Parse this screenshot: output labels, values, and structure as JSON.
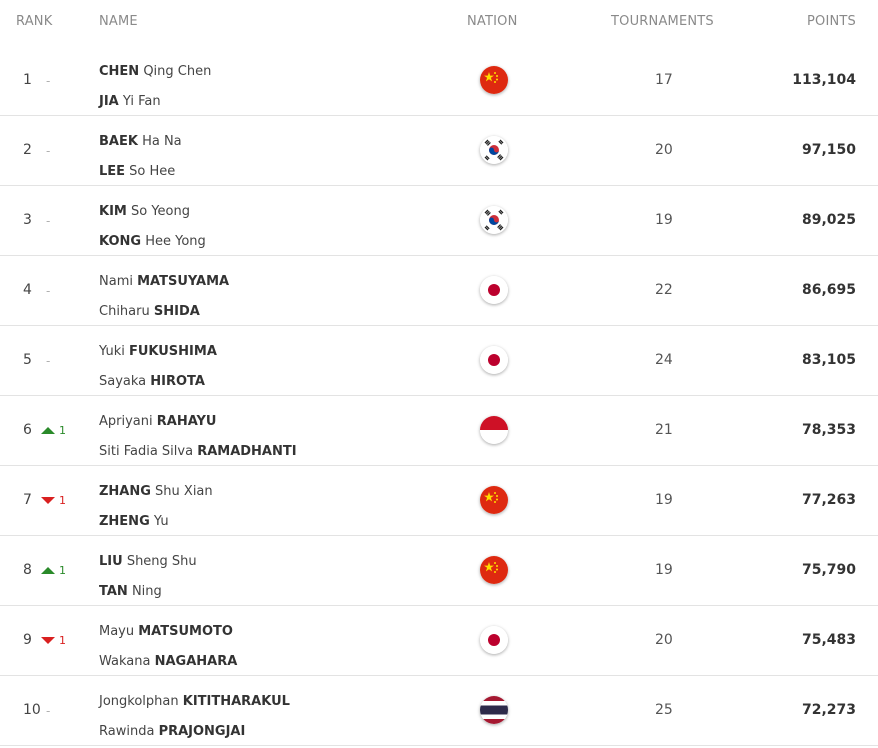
{
  "header": {
    "rank": "RANK",
    "name": "NAME",
    "nation": "NATION",
    "tournaments": "TOURNAMENTS",
    "points": "POINTS"
  },
  "rows": [
    {
      "rank": "1",
      "change": {
        "dir": "none",
        "text": "-"
      },
      "players": [
        {
          "first": "CHEN",
          "rest": " Qing Chen",
          "bold_first": true
        },
        {
          "first": "JIA",
          "rest": " Yi Fan",
          "bold_first": true
        }
      ],
      "nation": "china-flag",
      "tournaments": "17",
      "points": "113,104"
    },
    {
      "rank": "2",
      "change": {
        "dir": "none",
        "text": "-"
      },
      "players": [
        {
          "first": "BAEK",
          "rest": " Ha Na",
          "bold_first": true
        },
        {
          "first": "LEE",
          "rest": " So Hee",
          "bold_first": true
        }
      ],
      "nation": "korea-flag",
      "tournaments": "20",
      "points": "97,150"
    },
    {
      "rank": "3",
      "change": {
        "dir": "none",
        "text": "-"
      },
      "players": [
        {
          "first": "KIM",
          "rest": " So Yeong",
          "bold_first": true
        },
        {
          "first": "KONG",
          "rest": " Hee Yong",
          "bold_first": true
        }
      ],
      "nation": "korea-flag",
      "tournaments": "19",
      "points": "89,025"
    },
    {
      "rank": "4",
      "change": {
        "dir": "none",
        "text": "-"
      },
      "players": [
        {
          "first": "Nami ",
          "rest": "MATSUYAMA",
          "bold_first": false
        },
        {
          "first": "Chiharu ",
          "rest": "SHIDA",
          "bold_first": false
        }
      ],
      "nation": "japan-flag",
      "tournaments": "22",
      "points": "86,695"
    },
    {
      "rank": "5",
      "change": {
        "dir": "none",
        "text": "-"
      },
      "players": [
        {
          "first": "Yuki ",
          "rest": "FUKUSHIMA",
          "bold_first": false
        },
        {
          "first": "Sayaka ",
          "rest": "HIROTA",
          "bold_first": false
        }
      ],
      "nation": "japan-flag",
      "tournaments": "24",
      "points": "83,105"
    },
    {
      "rank": "6",
      "change": {
        "dir": "up",
        "text": "1"
      },
      "players": [
        {
          "first": "Apriyani ",
          "rest": "RAHAYU",
          "bold_first": false
        },
        {
          "first": "Siti Fadia Silva ",
          "rest": "RAMADHANTI",
          "bold_first": false
        }
      ],
      "nation": "indonesia-flag",
      "tournaments": "21",
      "points": "78,353"
    },
    {
      "rank": "7",
      "change": {
        "dir": "down",
        "text": "1"
      },
      "players": [
        {
          "first": "ZHANG",
          "rest": " Shu Xian",
          "bold_first": true
        },
        {
          "first": "ZHENG",
          "rest": " Yu",
          "bold_first": true
        }
      ],
      "nation": "china-flag",
      "tournaments": "19",
      "points": "77,263"
    },
    {
      "rank": "8",
      "change": {
        "dir": "up",
        "text": "1"
      },
      "players": [
        {
          "first": "LIU",
          "rest": " Sheng Shu",
          "bold_first": true
        },
        {
          "first": "TAN",
          "rest": " Ning",
          "bold_first": true
        }
      ],
      "nation": "china-flag",
      "tournaments": "19",
      "points": "75,790"
    },
    {
      "rank": "9",
      "change": {
        "dir": "down",
        "text": "1"
      },
      "players": [
        {
          "first": "Mayu ",
          "rest": "MATSUMOTO",
          "bold_first": false
        },
        {
          "first": "Wakana ",
          "rest": "NAGAHARA",
          "bold_first": false
        }
      ],
      "nation": "japan-flag",
      "tournaments": "20",
      "points": "75,483"
    },
    {
      "rank": "10",
      "change": {
        "dir": "none",
        "text": "-"
      },
      "players": [
        {
          "first": "Jongkolphan ",
          "rest": "KITITHARAKUL",
          "bold_first": false
        },
        {
          "first": "Rawinda ",
          "rest": "PRAJONGJAI",
          "bold_first": false
        }
      ],
      "nation": "thailand-flag",
      "tournaments": "25",
      "points": "72,273"
    }
  ],
  "colors": {
    "up": "#2a8a2a",
    "down": "#d92020",
    "divider": "#e3e3e3",
    "header_text": "#8a8a8a"
  }
}
